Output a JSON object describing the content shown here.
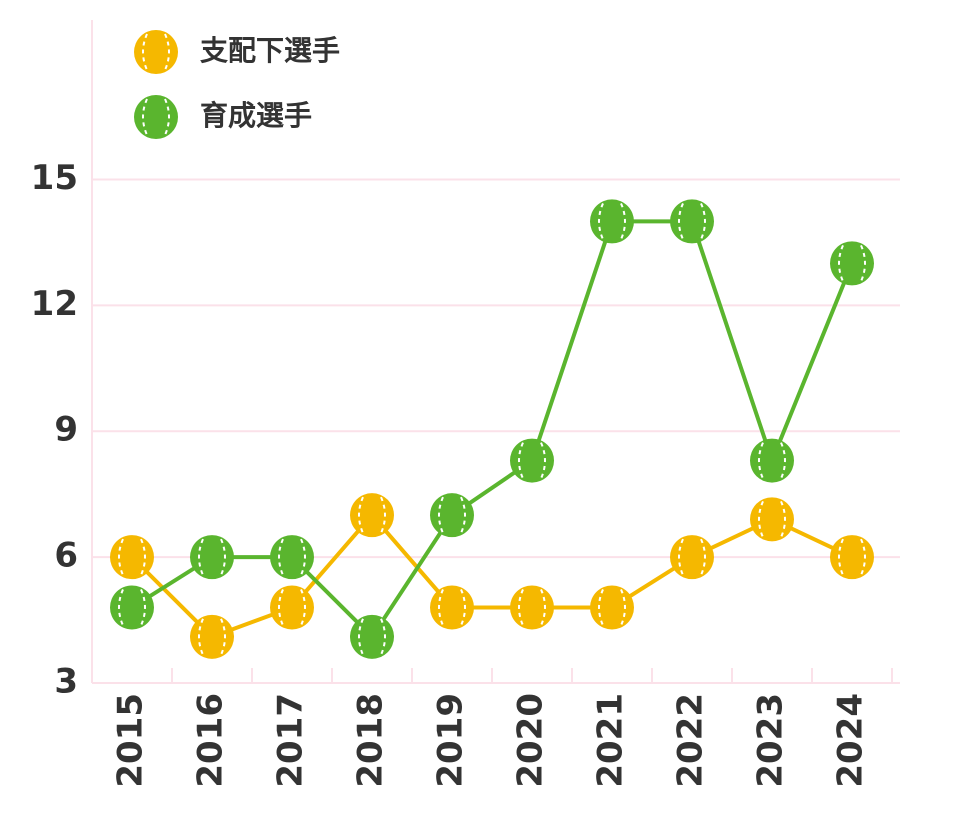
{
  "chart_data": {
    "type": "line",
    "categories": [
      "2015",
      "2016",
      "2017",
      "2018",
      "2019",
      "2020",
      "2021",
      "2022",
      "2023",
      "2024"
    ],
    "series": [
      {
        "name": "支配下選手",
        "color": "#f5b800",
        "values": [
          6,
          4.1,
          4.8,
          7,
          4.8,
          4.8,
          4.8,
          6,
          6.9,
          6
        ]
      },
      {
        "name": "育成選手",
        "color": "#5ab52e",
        "values": [
          4.8,
          6,
          6,
          4.1,
          7,
          8.3,
          14,
          14,
          8.3,
          13
        ]
      }
    ],
    "ylim": [
      3,
      18.8
    ],
    "yticks": [
      3,
      6,
      9,
      12,
      15
    ],
    "grid": true
  }
}
